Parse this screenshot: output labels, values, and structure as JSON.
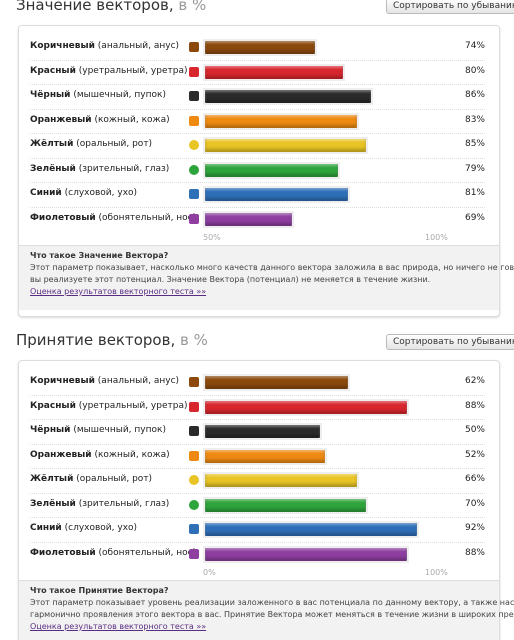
{
  "chart_data": [
    {
      "type": "bar",
      "title": "Значение векторов,",
      "title_unit": "в %",
      "sort_button": "Сортировать по убыванию",
      "categories": [
        "Коричневый",
        "Красный",
        "Чёрный",
        "Оранжевый",
        "Жёлтый",
        "Зелёный",
        "Синий",
        "Фиолетовый"
      ],
      "details": [
        "(анальный, анус)",
        "(уретральный, уретра)",
        "(мышечный, пупок)",
        "(кожный, кожа)",
        "(оральный, рот)",
        "(зрительный, глаз)",
        "(слуховой, ухо)",
        "(обонятельный, нос)"
      ],
      "colors": [
        "#8b4a0c",
        "#d8262e",
        "#2a2a2a",
        "#ee8a12",
        "#e8c424",
        "#2ea43c",
        "#2f6fb8",
        "#8e3fa0"
      ],
      "values": [
        74,
        80,
        86,
        83,
        85,
        79,
        81,
        69
      ],
      "value_labels": [
        "74%",
        "80%",
        "86%",
        "83%",
        "85%",
        "79%",
        "81%",
        "69%"
      ],
      "xlim": [
        50,
        100
      ],
      "xticks": [
        {
          "value": 50,
          "label": "50%"
        },
        {
          "value": 100,
          "label": "100%"
        }
      ],
      "info_title": "Что такое Значение Вектора?",
      "info_lines": [
        "Этот параметр показывает, насколько много качеств данного вектора заложила в вас природа, но ничего не говорит о том, как",
        "вы реализуете этот потенциал. Значение Вектора (потенциал) не меняется в течение жизни."
      ],
      "link": "Оценка результатов векторного теста »»"
    },
    {
      "type": "bar",
      "title": "Принятие векторов,",
      "title_unit": "в %",
      "sort_button": "Сортировать по убыванию",
      "categories": [
        "Коричневый",
        "Красный",
        "Чёрный",
        "Оранжевый",
        "Жёлтый",
        "Зелёный",
        "Синий",
        "Фиолетовый"
      ],
      "details": [
        "(анальный, анус)",
        "(уретральный, уретра)",
        "(мышечный, пупок)",
        "(кожный, кожа)",
        "(оральный, рот)",
        "(зрительный, глаз)",
        "(слуховой, ухо)",
        "(обонятельный, нос)"
      ],
      "colors": [
        "#8b4a0c",
        "#d8262e",
        "#2a2a2a",
        "#ee8a12",
        "#e8c424",
        "#2ea43c",
        "#2f6fb8",
        "#8e3fa0"
      ],
      "values": [
        62,
        88,
        50,
        52,
        66,
        70,
        92,
        88
      ],
      "value_labels": [
        "62%",
        "88%",
        "50%",
        "52%",
        "66%",
        "70%",
        "92%",
        "88%"
      ],
      "xlim": [
        0,
        100
      ],
      "xticks": [
        {
          "value": 0,
          "label": "0%"
        },
        {
          "value": 100,
          "label": "100%"
        }
      ],
      "info_title": "Что такое Принятие Вектора?",
      "info_lines": [
        "Этот параметр показывает уровень реализации заложенного в вас потенциала по данному вектору, а также насколько",
        "гармонично проявления этого вектора в вас. Принятие Вектора может меняться в течение жизни в широких пределах."
      ],
      "link": "Оценка результатов векторного теста »»"
    }
  ]
}
